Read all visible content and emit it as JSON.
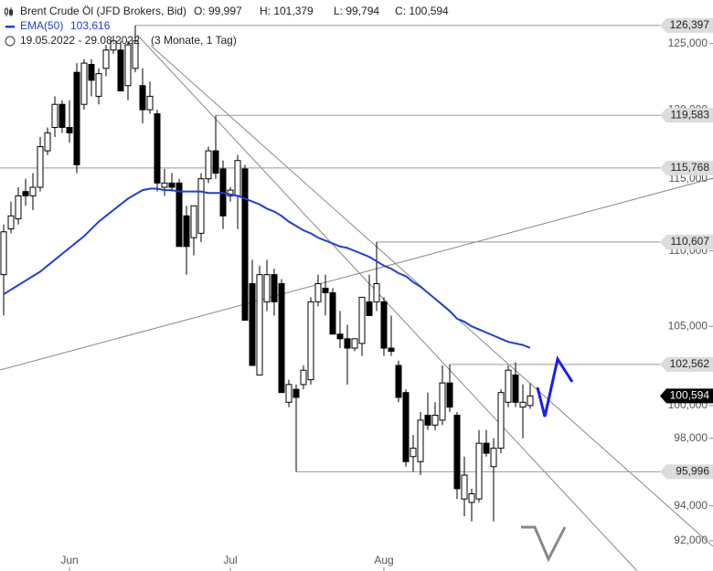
{
  "header": {
    "title": "Brent Crude Öl (JFD Brokers, Bid)",
    "ohlc": [
      "O: 99,997",
      "H: 101,379",
      "L: 99,794",
      "C: 100,594"
    ],
    "ema_name": "EMA(50)",
    "ema_value": "103,616",
    "range": "19.05.2022 - 29.08.2022",
    "interval": "(3 Monate, 1 Tag)"
  },
  "chart_data": {
    "type": "candlestick",
    "log_scale": true,
    "colors": {
      "up": "#ffffff",
      "down": "#000000",
      "ema": "#1f3fd8",
      "level": "#999999",
      "level_label": "#dcdcdc",
      "last_label": "#000000"
    },
    "ylim": [
      90.3,
      128.4
    ],
    "yticks": [
      {
        "value": 125,
        "label": "125,000"
      },
      {
        "value": 120,
        "label": "120,000"
      },
      {
        "value": 115,
        "label": "115,000"
      },
      {
        "value": 110,
        "label": "110,000"
      },
      {
        "value": 105,
        "label": "105,000"
      },
      {
        "value": 100,
        "label": "100,000"
      },
      {
        "value": 98,
        "label": "98,000"
      },
      {
        "value": 96,
        "label": "96,000"
      },
      {
        "value": 94,
        "label": "94,000"
      },
      {
        "value": 92,
        "label": "92,000"
      }
    ],
    "xticks": [
      {
        "value": 9,
        "label": "Jun"
      },
      {
        "value": 31,
        "label": "Jul"
      },
      {
        "value": 52,
        "label": "Aug"
      }
    ],
    "open": [
      108.4,
      111.5,
      112.2,
      114.1,
      113.8,
      114.4,
      117.0,
      118.7,
      120.4,
      118.7,
      122.8,
      120.4,
      123.4,
      121.0,
      123.1,
      124.5,
      124.5,
      121.8,
      123.1,
      121.8,
      120.0,
      119.7,
      114.4,
      114.7,
      114.7,
      112.4,
      110.9,
      111.2,
      115.0,
      117.0,
      115.7,
      113.8,
      113.8,
      115.7,
      107.8,
      101.9,
      106.6,
      108.4,
      107.8,
      100.2,
      101.0,
      101.3,
      101.6,
      106.6,
      107.5,
      107.2,
      104.5,
      104.2,
      103.6,
      103.9,
      106.6,
      106.6,
      106.6,
      103.6,
      102.5,
      100.8,
      96.9,
      96.6,
      99.4,
      98.8,
      99.1,
      101.4,
      99.4,
      94.4,
      94.2,
      94.4,
      97.7,
      96.3,
      97.4,
      100.2,
      101.9,
      99.9,
      99.997
    ],
    "high": [
      111.8,
      113.4,
      114.4,
      115.0,
      115.4,
      118.0,
      118.7,
      121.0,
      120.7,
      120.7,
      123.5,
      123.8,
      123.8,
      123.1,
      124.9,
      125.6,
      125.2,
      125.2,
      126.397,
      123.1,
      122.1,
      120.0,
      115.7,
      115.4,
      115.0,
      113.1,
      112.8,
      115.4,
      117.3,
      119.583,
      116.3,
      114.4,
      116.7,
      116.0,
      109.4,
      109.0,
      109.4,
      108.8,
      108.1,
      101.6,
      101.3,
      102.5,
      106.9,
      108.4,
      108.4,
      107.5,
      106.0,
      105.1,
      104.2,
      106.9,
      108.4,
      110.607,
      106.9,
      105.7,
      102.8,
      101.0,
      98.2,
      99.6,
      100.8,
      100.2,
      102.5,
      102.562,
      99.6,
      96.9,
      95.0,
      98.5,
      98.5,
      98.0,
      101.0,
      102.5,
      102.7,
      101.3,
      101.379
    ],
    "low": [
      105.7,
      111.2,
      111.8,
      113.1,
      112.8,
      114.1,
      116.7,
      118.0,
      118.3,
      117.6,
      115.4,
      120.0,
      121.0,
      120.4,
      122.5,
      124.2,
      121.4,
      120.7,
      122.8,
      119.0,
      119.7,
      114.1,
      113.8,
      114.1,
      110.3,
      108.4,
      109.7,
      110.6,
      114.7,
      115.0,
      111.5,
      113.4,
      111.5,
      105.4,
      102.5,
      101.9,
      106.0,
      105.7,
      100.8,
      99.9,
      95.996,
      101.0,
      101.3,
      106.3,
      105.7,
      104.5,
      103.6,
      101.3,
      103.4,
      103.1,
      105.7,
      106.0,
      103.1,
      103.1,
      100.2,
      96.3,
      96.0,
      95.8,
      98.5,
      98.5,
      98.8,
      99.6,
      94.4,
      93.4,
      93.1,
      94.2,
      96.9,
      93.1,
      97.1,
      99.9,
      99.9,
      98.0,
      99.794
    ],
    "close": [
      111.3,
      112.4,
      113.8,
      113.8,
      114.4,
      117.3,
      118.3,
      120.4,
      118.7,
      118.3,
      116.0,
      123.5,
      122.2,
      122.7,
      124.5,
      125.2,
      121.4,
      124.9,
      125.2,
      120.0,
      121.0,
      114.7,
      114.7,
      114.4,
      110.3,
      110.3,
      113.1,
      115.0,
      117.0,
      115.4,
      112.4,
      114.2,
      116.3,
      105.4,
      102.5,
      108.4,
      108.4,
      106.6,
      100.8,
      101.3,
      100.5,
      102.2,
      106.6,
      107.8,
      107.2,
      104.5,
      104.2,
      103.6,
      104.2,
      106.9,
      105.7,
      107.8,
      103.6,
      103.4,
      100.5,
      96.6,
      97.4,
      99.1,
      98.8,
      99.4,
      101.4,
      99.9,
      95.0,
      95.8,
      94.7,
      97.7,
      97.1,
      97.4,
      100.8,
      102.2,
      100.2,
      100.2,
      100.594
    ],
    "ema_values": [
      107.1,
      107.4,
      107.7,
      108.0,
      108.3,
      108.6,
      109.0,
      109.4,
      109.8,
      110.2,
      110.6,
      111.0,
      111.5,
      112.0,
      112.4,
      112.8,
      113.2,
      113.6,
      113.9,
      114.2,
      114.3,
      114.3,
      114.2,
      114.2,
      114.1,
      114.1,
      114.1,
      114.1,
      114.0,
      114.0,
      114.0,
      113.9,
      113.8,
      113.6,
      113.4,
      113.2,
      112.9,
      112.7,
      112.4,
      112.0,
      111.7,
      111.4,
      111.2,
      110.9,
      110.7,
      110.5,
      110.3,
      110.2,
      110.0,
      109.8,
      109.6,
      109.3,
      109.0,
      108.8,
      108.5,
      108.3,
      107.9,
      107.6,
      107.2,
      106.8,
      106.4,
      106.0,
      105.5,
      105.3,
      105.0,
      104.8,
      104.6,
      104.4,
      104.2,
      104.0,
      103.9,
      103.8,
      103.616
    ],
    "levels": [
      {
        "value": 126.397,
        "label": "126,397"
      },
      {
        "value": 119.583,
        "label": "119,583"
      },
      {
        "value": 115.768,
        "label": "115,768"
      },
      {
        "value": 110.607,
        "label": "110,607"
      },
      {
        "value": 102.562,
        "label": "102,562"
      },
      {
        "value": 95.996,
        "label": "95,996"
      }
    ],
    "last": {
      "value": 100.594,
      "label": "100,594"
    }
  }
}
